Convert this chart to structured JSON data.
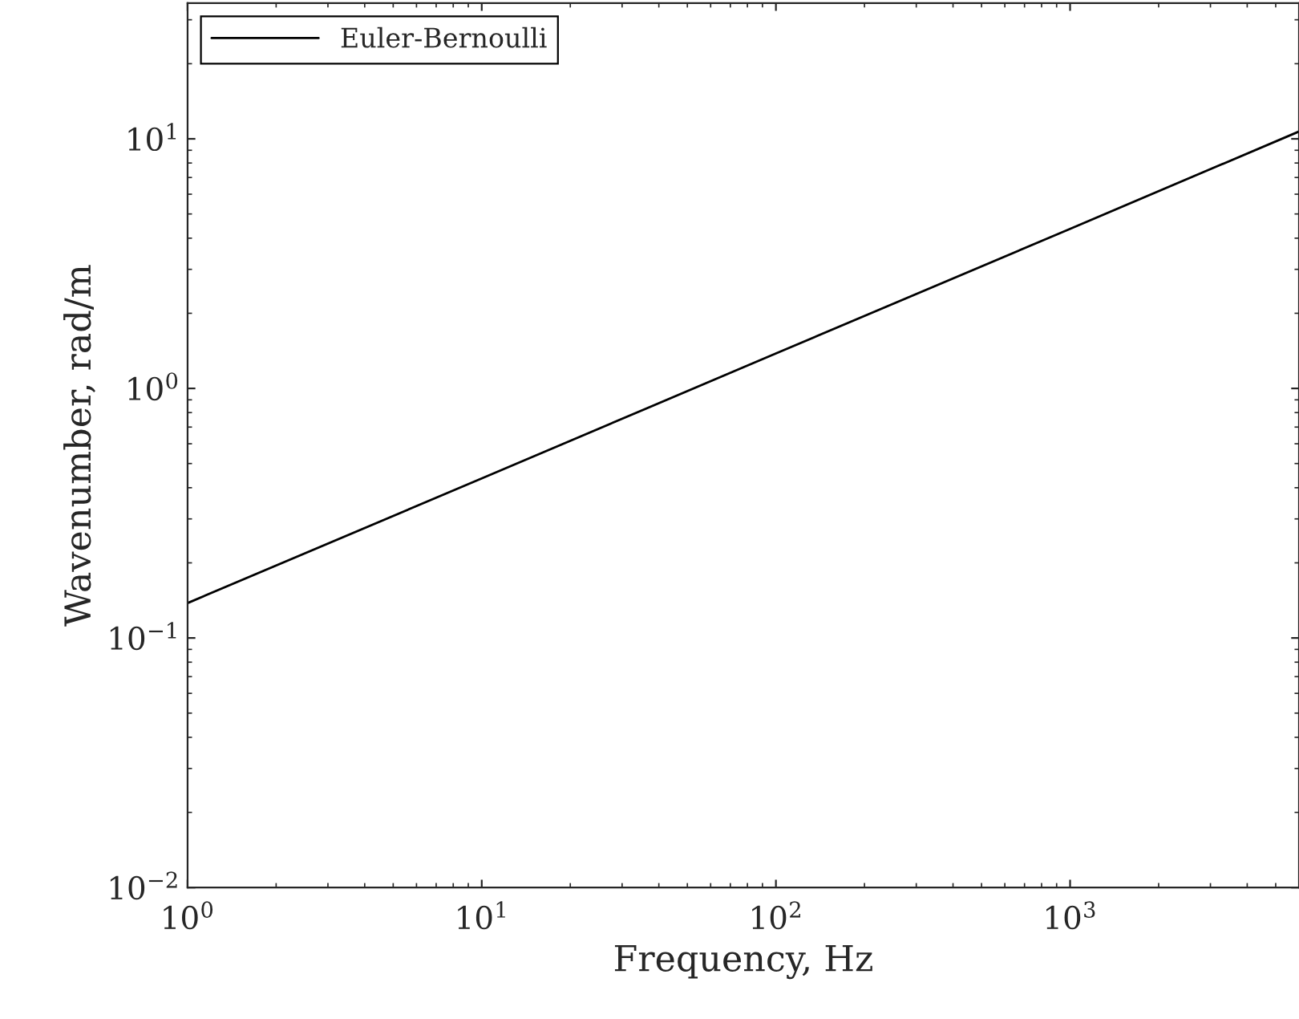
{
  "chart_data": {
    "type": "line",
    "xlabel": "Frequency, Hz",
    "ylabel": "Wavenumber, rad/m",
    "x": [
      1,
      10,
      100,
      1000,
      6000
    ],
    "series": [
      {
        "name": "Euler-Bernoulli",
        "color": "#000000",
        "values": [
          0.138,
          0.436,
          1.38,
          4.36,
          10.7
        ]
      }
    ],
    "log": "xy",
    "xlim": [
      1,
      6000
    ],
    "ylim": [
      0.01,
      35
    ],
    "xticks": [
      {
        "value": 1,
        "label": "10$^{0}$"
      },
      {
        "value": 10,
        "label": "10$^{1}$"
      },
      {
        "value": 100,
        "label": "10$^{2}$"
      },
      {
        "value": 1000,
        "label": "10$^{3}$"
      }
    ],
    "yticks": [
      {
        "value": 0.01,
        "label": "10$^{−2}$"
      },
      {
        "value": 0.1,
        "label": "10$^{−1}$"
      },
      {
        "value": 1,
        "label": "10$^{0}$"
      },
      {
        "value": 10,
        "label": "10$^{1}$"
      }
    ],
    "grid": false,
    "legend": "top left",
    "marker": "none",
    "line_style": "solid"
  }
}
